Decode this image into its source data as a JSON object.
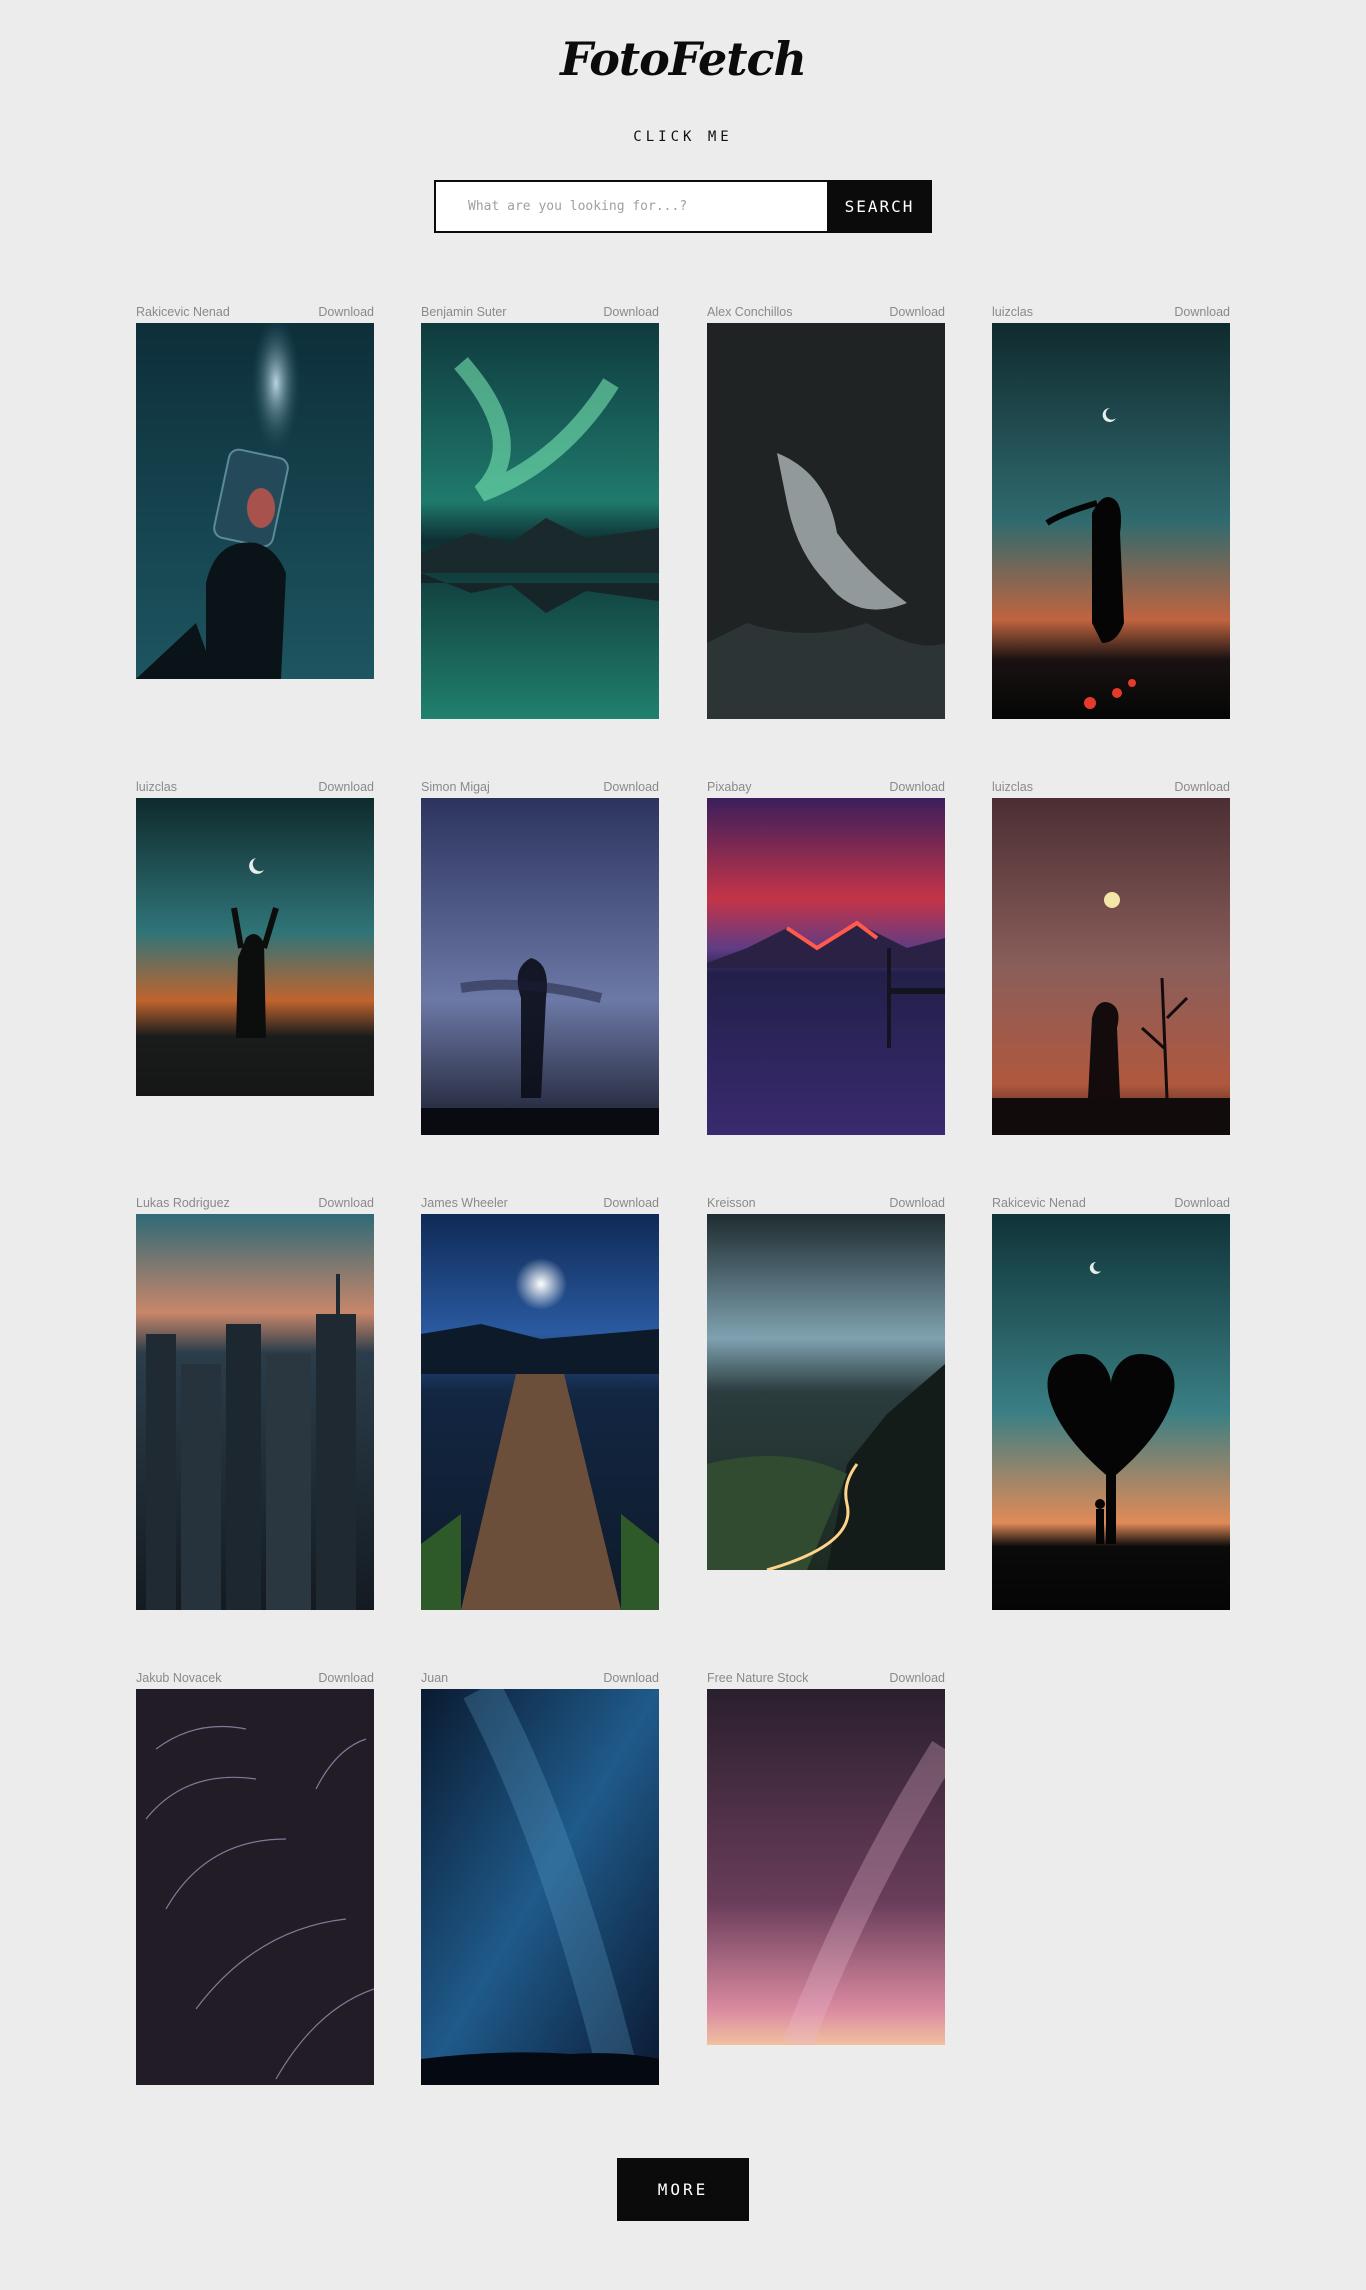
{
  "header": {
    "logo": "FotoFetch",
    "click_me": "CLICK ME"
  },
  "search": {
    "placeholder": "What are you looking for...?",
    "value": "",
    "button_label": "SEARCH"
  },
  "gallery": {
    "download_label": "Download",
    "photos": [
      {
        "author": "Rakicevic Nenad",
        "subject": "jar-of-stars"
      },
      {
        "author": "Benjamin Suter",
        "subject": "aurora-over-lake"
      },
      {
        "author": "Alex Conchillos",
        "subject": "dark-clouds"
      },
      {
        "author": "luizclas",
        "subject": "woman-silhouette-moon"
      },
      {
        "author": "luizclas",
        "subject": "arms-raised-sunset"
      },
      {
        "author": "Simon Migaj",
        "subject": "blurred-dancer"
      },
      {
        "author": "Pixabay",
        "subject": "red-mountain-lake"
      },
      {
        "author": "luizclas",
        "subject": "child-moon-birds"
      },
      {
        "author": "Lukas Rodriguez",
        "subject": "city-skyline-dusk"
      },
      {
        "author": "James Wheeler",
        "subject": "moonlit-pier"
      },
      {
        "author": "Kreisson",
        "subject": "mountain-road-lights"
      },
      {
        "author": "Rakicevic Nenad",
        "subject": "heart-tree-silhouette"
      },
      {
        "author": "Jakub Novacek",
        "subject": "star-trails"
      },
      {
        "author": "Juan",
        "subject": "milky-way-blue"
      },
      {
        "author": "Free Nature Stock",
        "subject": "milky-way-pink"
      }
    ]
  },
  "more_label": "MORE"
}
